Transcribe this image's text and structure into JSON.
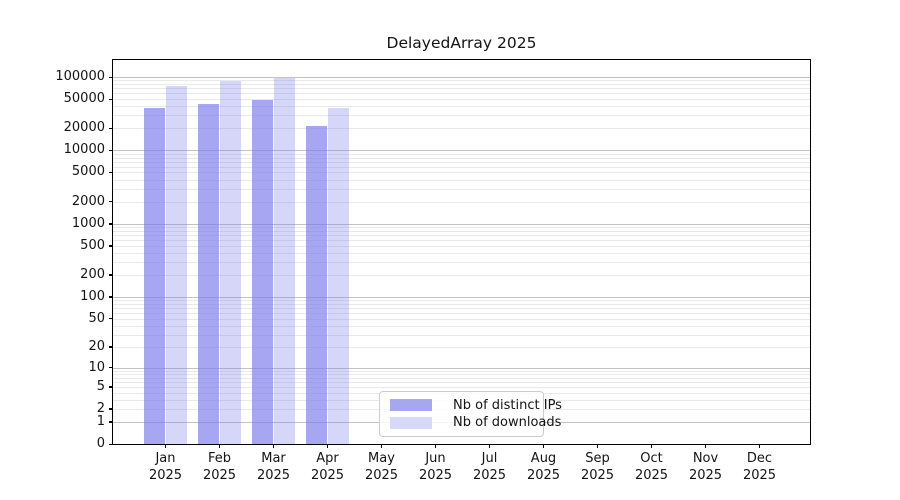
{
  "chart_data": {
    "type": "bar",
    "title": "DelayedArray 2025",
    "xlabel": "",
    "ylabel": "",
    "categories": [
      "Jan",
      "Feb",
      "Mar",
      "Apr",
      "May",
      "Jun",
      "Jul",
      "Aug",
      "Sep",
      "Oct",
      "Nov",
      "Dec"
    ],
    "year_label": "2025",
    "series": [
      {
        "name": "Nb of distinct IPs",
        "values": [
          38000,
          43000,
          48000,
          21500,
          null,
          null,
          null,
          null,
          null,
          null,
          null,
          null
        ]
      },
      {
        "name": "Nb of downloads",
        "values": [
          75000,
          87000,
          97000,
          38000,
          null,
          null,
          null,
          null,
          null,
          null,
          null,
          null
        ]
      }
    ],
    "y_axis": {
      "scale": "log10(value+1)",
      "max": 170500,
      "min": 0,
      "tick_labels": [
        100000,
        50000,
        20000,
        10000,
        5000,
        2000,
        1000,
        500,
        200,
        100,
        50,
        20,
        10,
        5,
        2,
        1,
        0
      ]
    },
    "grid": "horizontal, log major + minor lines",
    "legend_position": "inside bottom-center",
    "colors": {
      "bar_distinct_ips": "rgba(120,120,235,0.66)",
      "bar_downloads": "rgba(120,120,235,0.30)",
      "legend_swatch_ips": "#a6a6f1",
      "legend_swatch_downloads": "#d8d8f8",
      "grid_major": "#c3c3c3",
      "grid_minor": "#e9e9e9",
      "axis": "#000000",
      "text": "#141414"
    }
  }
}
